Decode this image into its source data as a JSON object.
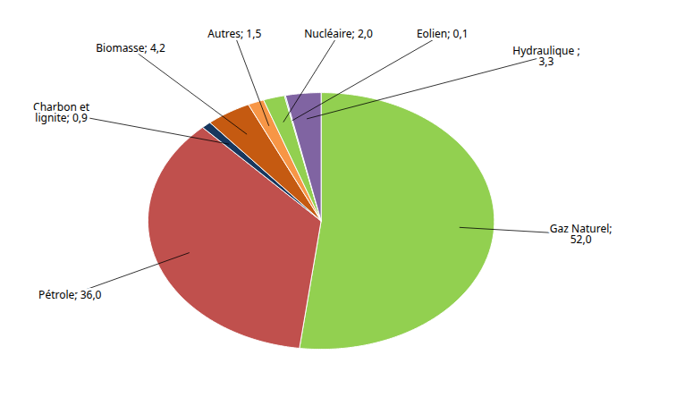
{
  "chart_data": {
    "type": "pie",
    "categories": [
      "Gaz Naturel;\n52,0",
      "Pétrole; 36,0",
      "Charbon et\nlignite; 0,9",
      "Biomasse; 4,2",
      "Autres; 1,5",
      "Nucléaire; 2,0",
      "Eolien; 0,1",
      "Hydraulique ;\n3,3"
    ],
    "values": [
      52.0,
      36.0,
      0.9,
      4.2,
      1.5,
      2.0,
      0.1,
      3.3
    ],
    "colors": [
      "#92D050",
      "#C0504D",
      "#17375E",
      "#C55A11",
      "#F79646",
      "#92D050",
      "#4BACC6",
      "#8064A2"
    ]
  }
}
